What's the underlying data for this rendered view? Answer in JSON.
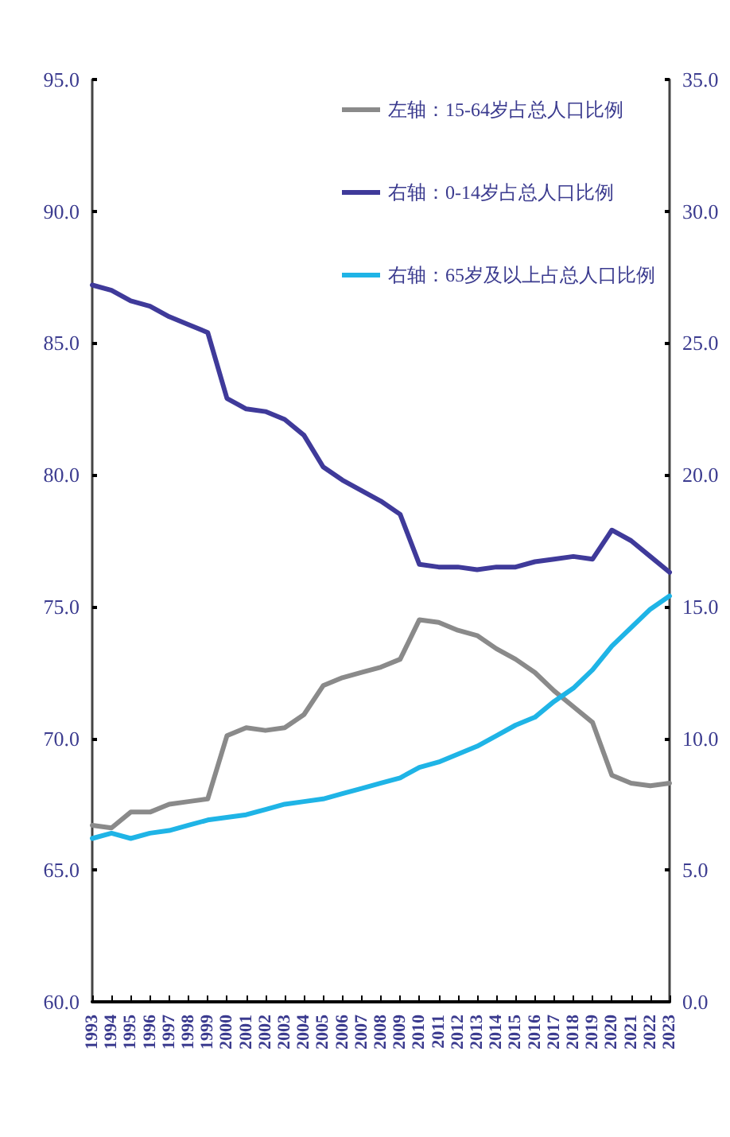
{
  "chart_data": {
    "type": "line",
    "categories": [
      "1993",
      "1994",
      "1995",
      "1996",
      "1997",
      "1998",
      "1999",
      "2000",
      "2001",
      "2002",
      "2003",
      "2004",
      "2005",
      "2006",
      "2007",
      "2008",
      "2009",
      "2010",
      "2011",
      "2012",
      "2013",
      "2014",
      "2015",
      "2016",
      "2017",
      "2018",
      "2019",
      "2020",
      "2021",
      "2022",
      "2023"
    ],
    "series": [
      {
        "name": "左轴：15-64岁占总人口比例",
        "color": "#8a8a8a",
        "values": [
          66.7,
          66.6,
          67.2,
          67.2,
          67.5,
          67.6,
          67.7,
          70.1,
          70.4,
          70.3,
          70.4,
          70.9,
          72.0,
          72.3,
          72.5,
          72.7,
          73.0,
          74.5,
          74.4,
          74.1,
          73.9,
          73.4,
          73.0,
          72.5,
          71.8,
          71.2,
          70.6,
          68.6,
          68.3,
          68.2,
          68.3
        ]
      },
      {
        "name": "右轴：0-14岁占总人口比例",
        "color": "#3f3a9a",
        "axis": "y2",
        "values": [
          27.2,
          27.0,
          26.6,
          26.4,
          26.0,
          25.7,
          25.4,
          22.9,
          22.5,
          22.4,
          22.1,
          21.5,
          20.3,
          19.8,
          19.4,
          19.0,
          18.5,
          16.6,
          16.5,
          16.5,
          16.4,
          16.5,
          16.5,
          16.7,
          16.8,
          16.9,
          16.8,
          17.9,
          17.5,
          16.9,
          16.3
        ]
      },
      {
        "name": "右轴：65岁及以上占总人口比例",
        "color": "#1fb4e6",
        "axis": "y2",
        "values": [
          6.2,
          6.4,
          6.2,
          6.4,
          6.5,
          6.7,
          6.9,
          7.0,
          7.1,
          7.3,
          7.5,
          7.6,
          7.7,
          7.9,
          8.1,
          8.3,
          8.5,
          8.9,
          9.1,
          9.4,
          9.7,
          10.1,
          10.5,
          10.8,
          11.4,
          11.9,
          12.6,
          13.5,
          14.2,
          14.9,
          15.4
        ]
      }
    ],
    "ylim": [
      60,
      95
    ],
    "yticks": [
      {
        "value": 60,
        "label": "60.0"
      },
      {
        "value": 65,
        "label": "65.0"
      },
      {
        "value": 70,
        "label": "70.0"
      },
      {
        "value": 75,
        "label": "75.0"
      },
      {
        "value": 80,
        "label": "80.0"
      },
      {
        "value": 85,
        "label": "85.0"
      },
      {
        "value": 90,
        "label": "90.0"
      },
      {
        "value": 95,
        "label": "95.0"
      }
    ],
    "y2lim": [
      0,
      35
    ],
    "y2ticks": [
      {
        "value": 0,
        "label": "0.0"
      },
      {
        "value": 5,
        "label": "5.0"
      },
      {
        "value": 10,
        "label": "10.0"
      },
      {
        "value": 15,
        "label": "15.0"
      },
      {
        "value": 20,
        "label": "20.0"
      },
      {
        "value": 25,
        "label": "25.0"
      },
      {
        "value": 30,
        "label": "30.0"
      },
      {
        "value": 35,
        "label": "35.0"
      }
    ],
    "grid": false,
    "legend": "top right",
    "marker": "none",
    "line_style": "solid"
  }
}
